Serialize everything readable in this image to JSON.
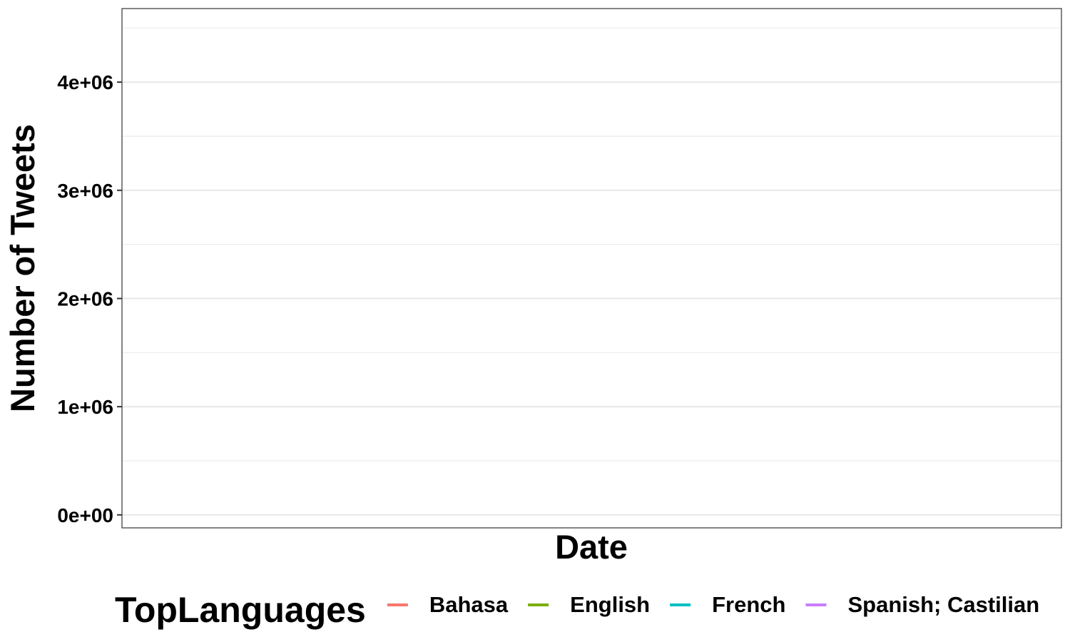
{
  "chart_data": {
    "type": "line",
    "title": "",
    "xlabel": "Date",
    "ylabel": "Number of Tweets",
    "ylim": [
      -120000,
      4680000
    ],
    "yticks": [
      {
        "value": 0,
        "label": "0e+00"
      },
      {
        "value": 1000000,
        "label": "1e+06"
      },
      {
        "value": 2000000,
        "label": "2e+06"
      },
      {
        "value": 3000000,
        "label": "3e+06"
      },
      {
        "value": 4000000,
        "label": "4e+06"
      }
    ],
    "y_minor_gridlines": [
      500000,
      1500000,
      2500000,
      3500000,
      4500000
    ],
    "xticks": [],
    "grid": true,
    "legend": {
      "title": "TopLanguages",
      "position": "bottom",
      "entries": [
        {
          "name": "Bahasa",
          "color": "#F8766D"
        },
        {
          "name": "English",
          "color": "#7CAE00"
        },
        {
          "name": "French",
          "color": "#00BFC4"
        },
        {
          "name": "Spanish; Castilian",
          "color": "#C77CFF"
        }
      ]
    },
    "series": [
      {
        "name": "Bahasa",
        "color": "#F8766D",
        "values": []
      },
      {
        "name": "English",
        "color": "#7CAE00",
        "values": []
      },
      {
        "name": "French",
        "color": "#00BFC4",
        "values": []
      },
      {
        "name": "Spanish; Castilian",
        "color": "#C77CFF",
        "values": []
      }
    ]
  }
}
